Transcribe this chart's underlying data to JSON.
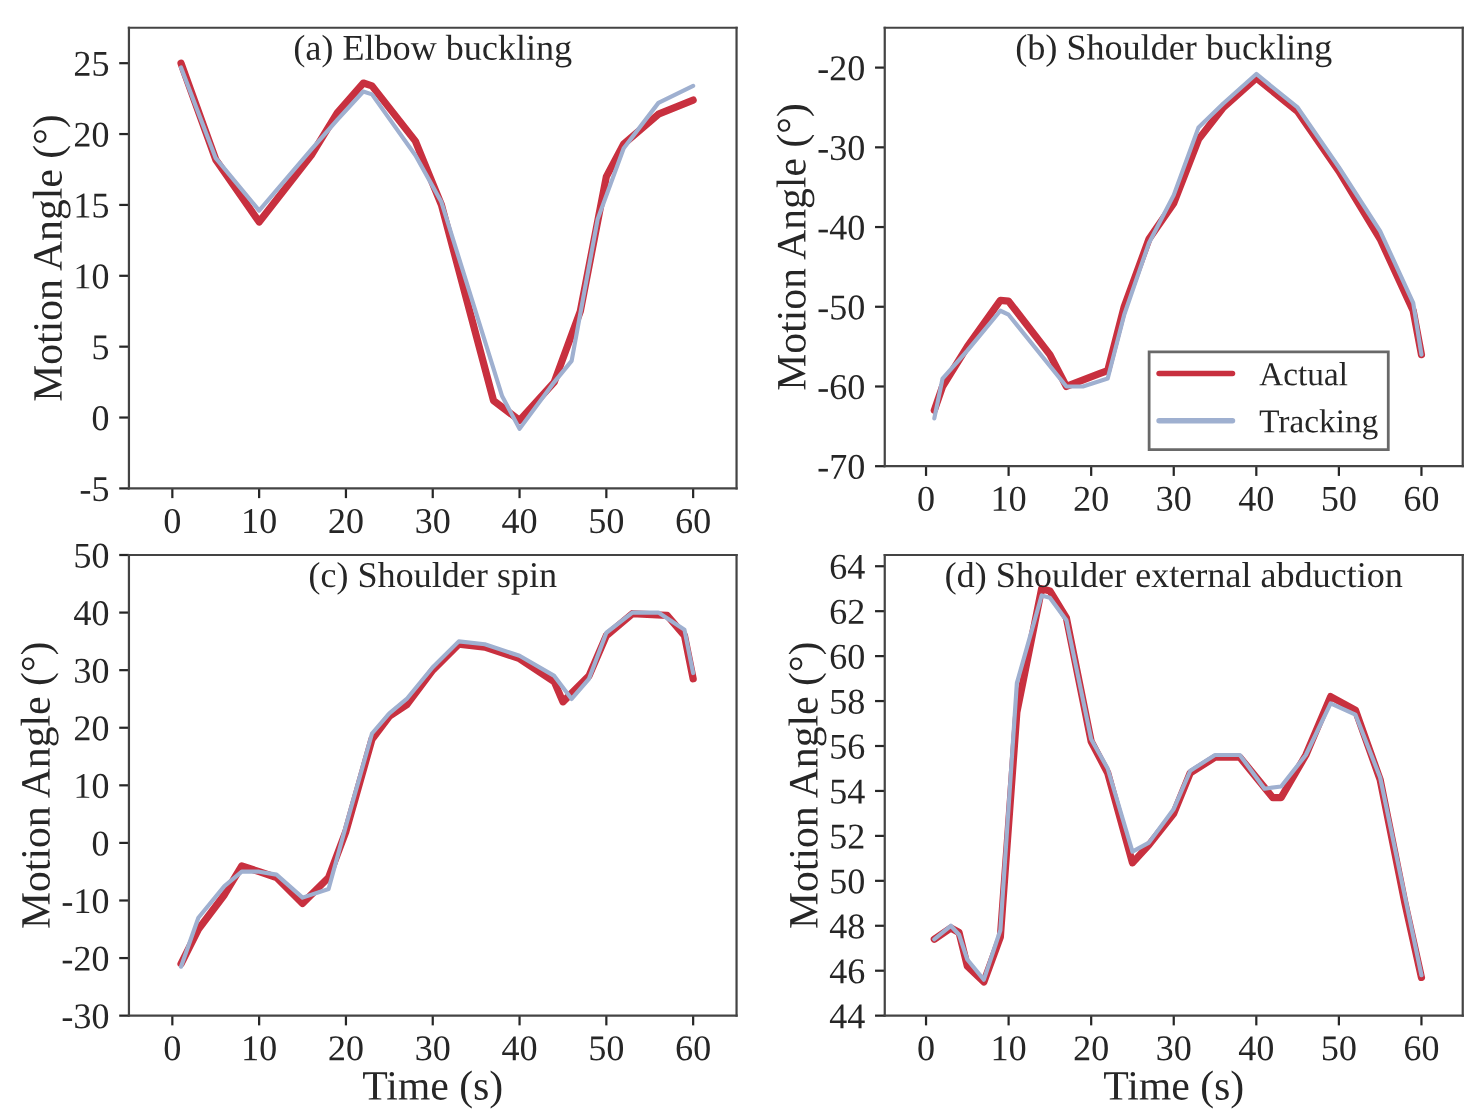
{
  "chart_data": [
    {
      "type": "line",
      "title": "(a) Elbow buckling",
      "ylabel": "Motion Angle (°)",
      "xlim": [
        -5,
        65
      ],
      "xticks": [
        0,
        10,
        20,
        30,
        40,
        50,
        60
      ],
      "ylim": [
        -5,
        27.5
      ],
      "yticks": [
        -5,
        0,
        5,
        10,
        15,
        20,
        25
      ],
      "grid": false,
      "legend": false,
      "series": [
        {
          "color": "#c8303f",
          "x": [
            1,
            5,
            10,
            16,
            19,
            22,
            23,
            28,
            31,
            37,
            40,
            44,
            47,
            50,
            52,
            56,
            60
          ],
          "values": [
            25,
            18.2,
            13.8,
            18.5,
            21.5,
            23.6,
            23.4,
            19.5,
            15,
            1.2,
            -0.2,
            2.5,
            7.5,
            17,
            19.3,
            21.4,
            22.4
          ]
        },
        {
          "color": "#9fb0d0",
          "x": [
            1,
            5,
            10,
            16,
            19,
            22,
            23,
            28,
            31,
            38,
            40,
            44,
            46,
            49,
            52,
            56,
            60
          ],
          "values": [
            24.7,
            18.3,
            14.6,
            18.9,
            21,
            23,
            22.8,
            18.5,
            15.2,
            1.5,
            -0.8,
            2.5,
            4,
            14,
            19,
            22.2,
            23.4
          ]
        }
      ]
    },
    {
      "type": "line",
      "title": "(b) Shoulder buckling",
      "ylabel": "Motion Angle (°)",
      "xlim": [
        -5,
        65
      ],
      "xticks": [
        0,
        10,
        20,
        30,
        40,
        50,
        60
      ],
      "ylim": [
        -70,
        -15
      ],
      "yticks": [
        -70,
        -60,
        -50,
        -40,
        -30,
        -20
      ],
      "grid": false,
      "legend": "bottom right",
      "series": [
        {
          "name": "Actual",
          "color": "#c8303f",
          "x": [
            1,
            2,
            5,
            9,
            10,
            15,
            17,
            21,
            22,
            24,
            27,
            30,
            33,
            36,
            40,
            45,
            50,
            55,
            59,
            60
          ],
          "values": [
            -63,
            -60,
            -55,
            -49.2,
            -49.3,
            -56,
            -60,
            -58.4,
            -58,
            -50,
            -41.5,
            -37,
            -29,
            -25,
            -21.3,
            -25.5,
            -33,
            -41.5,
            -50.5,
            -56
          ]
        },
        {
          "name": "Tracking",
          "color": "#9fb0d0",
          "x": [
            1,
            2,
            5,
            9,
            10,
            17,
            19,
            22,
            24,
            27,
            30,
            33,
            36,
            40,
            45,
            50,
            55,
            59,
            60
          ],
          "values": [
            -64,
            -59,
            -55.5,
            -50.5,
            -51,
            -60,
            -60,
            -59,
            -51,
            -42,
            -36,
            -27.5,
            -24.5,
            -20.8,
            -25,
            -32.5,
            -40.5,
            -49.5,
            -56
          ]
        }
      ]
    },
    {
      "type": "line",
      "title": "(c) Shoulder spin",
      "xlabel": "Time (s)",
      "ylabel": "Motion Angle (°)",
      "xlim": [
        -5,
        65
      ],
      "xticks": [
        0,
        10,
        20,
        30,
        40,
        50,
        60
      ],
      "ylim": [
        -30,
        50
      ],
      "yticks": [
        -30,
        -20,
        -10,
        0,
        10,
        20,
        30,
        40,
        50
      ],
      "grid": false,
      "legend": false,
      "series": [
        {
          "color": "#c8303f",
          "x": [
            1,
            3,
            6,
            8,
            10,
            12,
            15,
            18,
            20,
            23,
            25,
            27,
            30,
            33,
            36,
            40,
            44,
            45,
            48,
            50,
            53,
            57,
            59,
            60
          ],
          "values": [
            -21,
            -15,
            -9,
            -4,
            -5,
            -6,
            -10.5,
            -6,
            2,
            18,
            22,
            24,
            30,
            34.5,
            34,
            32,
            28,
            24.5,
            29,
            36,
            39.8,
            39.5,
            36,
            28.5
          ]
        },
        {
          "color": "#9fb0d0",
          "x": [
            1,
            3,
            6,
            8,
            10,
            12,
            15,
            18,
            20,
            23,
            25,
            27,
            30,
            33,
            36,
            40,
            44,
            46,
            48,
            50,
            53,
            56,
            59,
            60
          ],
          "values": [
            -21.5,
            -13,
            -7.5,
            -5,
            -5,
            -5.5,
            -9.5,
            -8,
            3,
            19,
            22.5,
            25,
            30.5,
            35,
            34.5,
            32.5,
            29,
            25,
            28.5,
            36.5,
            40,
            40,
            37,
            29.5
          ]
        }
      ]
    },
    {
      "type": "line",
      "title": "(d) Shoulder external abduction",
      "xlabel": "Time (s)",
      "ylabel": "Motion Angle (°)",
      "xlim": [
        -5,
        65
      ],
      "xticks": [
        0,
        10,
        20,
        30,
        40,
        50,
        60
      ],
      "ylim": [
        44,
        64.5
      ],
      "yticks": [
        44,
        46,
        48,
        50,
        52,
        54,
        56,
        58,
        60,
        62,
        64
      ],
      "grid": false,
      "legend": false,
      "series": [
        {
          "color": "#c8303f",
          "x": [
            1,
            3,
            4,
            5,
            7,
            9,
            11,
            14,
            15,
            17,
            20,
            22,
            25,
            27,
            30,
            32,
            35,
            38,
            42,
            43,
            46,
            49,
            52,
            55,
            58,
            60
          ],
          "values": [
            47.4,
            47.9,
            47.7,
            46.2,
            45.5,
            47.5,
            57.5,
            63.0,
            62.9,
            61.7,
            56.2,
            54.8,
            50.8,
            51.6,
            53,
            54.8,
            55.5,
            55.5,
            53.7,
            53.7,
            55.6,
            58.2,
            57.6,
            54.5,
            49,
            45.7
          ]
        },
        {
          "color": "#9fb0d0",
          "x": [
            1,
            3,
            4,
            5,
            7,
            9,
            11,
            14,
            15,
            17,
            20,
            22,
            25,
            27,
            30,
            32,
            35,
            38,
            41,
            43,
            46,
            49,
            52,
            55,
            58,
            60
          ],
          "values": [
            47.4,
            48,
            47.6,
            46.5,
            45.6,
            47.8,
            58.8,
            62.7,
            62.6,
            61.6,
            56.3,
            55,
            51.3,
            51.7,
            53.2,
            54.9,
            55.6,
            55.6,
            54.1,
            54.2,
            55.6,
            57.9,
            57.4,
            54.6,
            49.3,
            45.8
          ]
        }
      ]
    }
  ]
}
